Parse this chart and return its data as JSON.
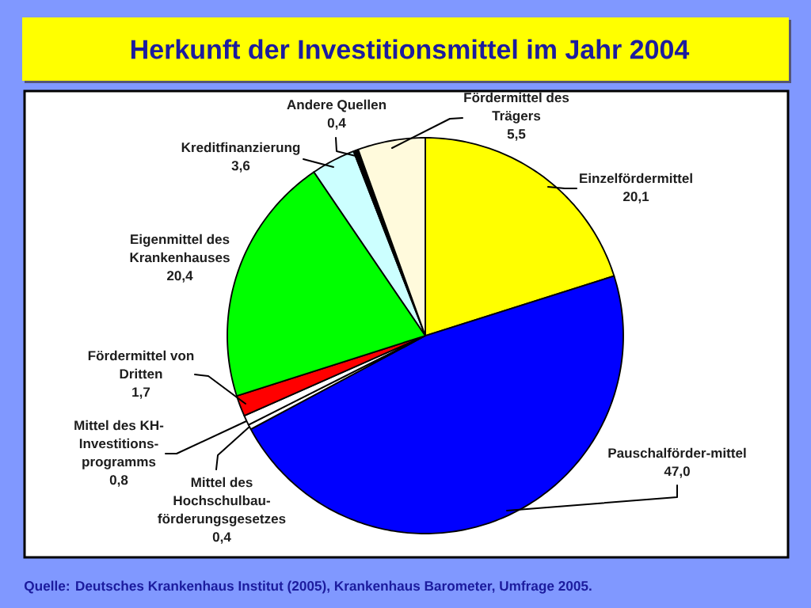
{
  "chart_data": {
    "type": "pie",
    "title": "Herkunft der Investitionsmittel im Jahr 2004",
    "categories": [
      "Einzelfördermittel",
      "Pauschalförder-mittel",
      "Mittel des Hochschulbau-förderungsgesetzes",
      "Mittel des KH-Investitions-programms",
      "Fördermittel von Dritten",
      "Eigenmittel des Krankenhauses",
      "Kreditfinanzierung",
      "Andere Quellen",
      "Fördermittel des Trägers"
    ],
    "values": [
      20.1,
      47.0,
      0.4,
      0.8,
      1.7,
      20.4,
      3.6,
      0.4,
      5.5
    ],
    "value_labels": [
      "20,1",
      "47,0",
      "0,4",
      "0,8",
      "1,7",
      "20,4",
      "3,6",
      "0,4",
      "5,5"
    ],
    "colors": [
      "#ffff00",
      "#0000ff",
      "#ffffff",
      "#ffffff",
      "#ff0000",
      "#00ff00",
      "#ccffff",
      "#000000",
      "#fffadc"
    ],
    "annotations": [
      "Quelle: Deutsches Krankenhaus Institut (2005), Krankenhaus Barometer, Umfrage 2005."
    ]
  }
}
